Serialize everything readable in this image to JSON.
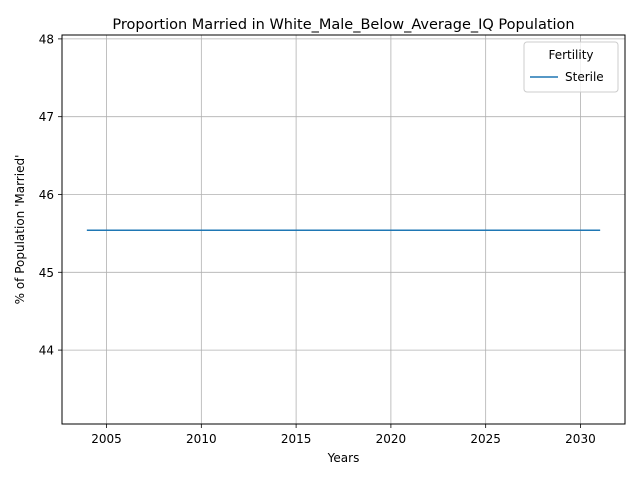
{
  "chart_data": {
    "type": "line",
    "title": "Proportion Married in White_Male_Below_Average_IQ Population",
    "xlabel": "Years",
    "ylabel": "% of Population 'Married'",
    "xlim": [
      2002.65,
      2032.35
    ],
    "ylim": [
      43.05,
      48.05
    ],
    "xticks": [
      2005,
      2010,
      2015,
      2020,
      2025,
      2030
    ],
    "yticks": [
      44,
      45,
      46,
      47,
      48
    ],
    "grid": true,
    "legend": {
      "title": "Fertility",
      "placement": "top-right"
    },
    "series": [
      {
        "name": "Sterile",
        "color": "#1f77b4",
        "x": [
          2004,
          2005,
          2006,
          2007,
          2008,
          2009,
          2010,
          2011,
          2012,
          2013,
          2014,
          2015,
          2016,
          2017,
          2018,
          2019,
          2020,
          2021,
          2022,
          2023,
          2024,
          2025,
          2026,
          2027,
          2028,
          2029,
          2030,
          2031
        ],
        "y": [
          45.54,
          45.54,
          45.54,
          45.54,
          45.54,
          45.54,
          45.54,
          45.54,
          45.54,
          45.54,
          45.54,
          45.54,
          45.54,
          45.54,
          45.54,
          45.54,
          45.54,
          45.54,
          45.54,
          45.54,
          45.54,
          45.54,
          45.54,
          45.54,
          45.54,
          45.54,
          45.54,
          45.54
        ]
      }
    ]
  }
}
